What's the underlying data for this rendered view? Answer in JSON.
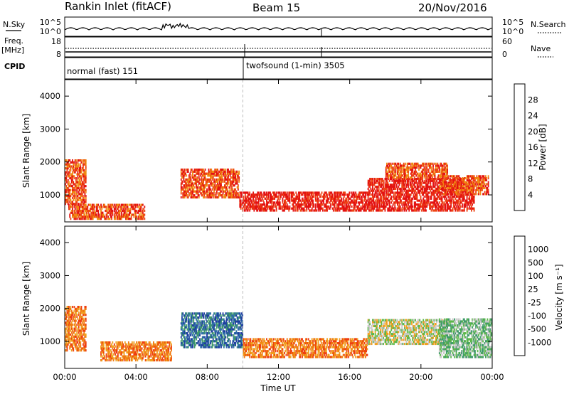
{
  "header": {
    "site": "Rankin Inlet (fitACF)",
    "beam": "Beam 15",
    "date": "20/Nov/2016"
  },
  "summary_panels": {
    "nsky_label": "N.Sky",
    "nsky_ticks": [
      "10^5",
      "10^0"
    ],
    "nsearch_label": "N.Search",
    "nsearch_ticks": [
      "10^5",
      "10^0"
    ],
    "freq_label": "Freq.",
    "freq_unit": "[MHz]",
    "freq_ticks": [
      "18",
      "8"
    ],
    "nave_label": "Nave",
    "nave_ticks": [
      "60",
      "0"
    ],
    "cpid_label": "CPID",
    "cpid_segments": [
      {
        "label": "normal (fast) 151",
        "start_hour": 0,
        "end_hour": 10
      },
      {
        "label": "twofsound (1-min) 3505",
        "start_hour": 10,
        "end_hour": 24
      }
    ]
  },
  "chart_data": [
    {
      "type": "heatmap",
      "name": "power",
      "xlabel": "",
      "ylabel": "Slant Range [km]",
      "x_ticks": [
        "00:00",
        "04:00",
        "08:00",
        "12:00",
        "16:00",
        "20:00",
        "00:00"
      ],
      "xlim_hours": [
        0,
        24
      ],
      "y_ticks": [
        1000,
        2000,
        3000,
        4000
      ],
      "ylim": [
        180,
        4500
      ],
      "colorbar": {
        "label": "Power [dB]",
        "ticks": [
          "4",
          "8",
          "12",
          "16",
          "20",
          "24",
          "28"
        ],
        "colors": [
          "#0a1fe6",
          "#2757a8",
          "#3f8f5a",
          "#6ab04b",
          "#d9c21a",
          "#f08a12",
          "#ee4415",
          "#e31212"
        ]
      },
      "bands": [
        {
          "t0": 0,
          "t1": 1.2,
          "r0": 700,
          "r1": 2100,
          "level": 6
        },
        {
          "t0": 0.2,
          "t1": 4.5,
          "r0": 250,
          "r1": 700,
          "level": 6
        },
        {
          "t0": 6.5,
          "t1": 9.8,
          "r0": 900,
          "r1": 1800,
          "level": 6
        },
        {
          "t0": 9.8,
          "t1": 17,
          "r0": 500,
          "r1": 1100,
          "level": 7
        },
        {
          "t0": 17,
          "t1": 23,
          "r0": 500,
          "r1": 1500,
          "level": 7
        },
        {
          "t0": 18,
          "t1": 21.5,
          "r0": 1500,
          "r1": 2000,
          "level": 6
        },
        {
          "t0": 21,
          "t1": 23.8,
          "r0": 1000,
          "r1": 1600,
          "level": 6
        }
      ]
    },
    {
      "type": "heatmap",
      "name": "velocity",
      "xlabel": "Time UT",
      "ylabel": "Slant Range [km]",
      "x_ticks": [
        "00:00",
        "04:00",
        "08:00",
        "12:00",
        "16:00",
        "20:00",
        "00:00"
      ],
      "xlim_hours": [
        0,
        24
      ],
      "y_ticks": [
        1000,
        2000,
        3000,
        4000
      ],
      "ylim": [
        180,
        4500
      ],
      "colorbar": {
        "label": "Velocity [m s⁻¹]",
        "ticks": [
          "1000",
          "500",
          "100",
          "25",
          "-25",
          "-100",
          "-500",
          "-1000"
        ],
        "colors": [
          "#1f3fa0",
          "#2f6ea8",
          "#3f9a6a",
          "#5cb84a",
          "#c8c8c8",
          "#f0a020",
          "#f07a10",
          "#ee3e10",
          "#e31010"
        ]
      },
      "bands": [
        {
          "t0": 0,
          "t1": 1.2,
          "r0": 700,
          "r1": 2100,
          "level": 6
        },
        {
          "t0": 2,
          "t1": 6,
          "r0": 400,
          "r1": 1000,
          "level": 6
        },
        {
          "t0": 6.5,
          "t1": 10,
          "r0": 800,
          "r1": 1900,
          "level": 1
        },
        {
          "t0": 10,
          "t1": 17,
          "r0": 500,
          "r1": 1100,
          "level": 6
        },
        {
          "t0": 17,
          "t1": 21.5,
          "r0": 900,
          "r1": 1700,
          "level": 4
        },
        {
          "t0": 21,
          "t1": 24,
          "r0": 500,
          "r1": 1700,
          "level": 3
        }
      ]
    }
  ]
}
